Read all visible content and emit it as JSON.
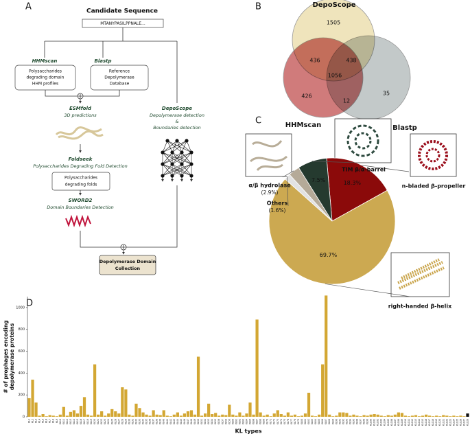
{
  "panel_labels": [
    "A",
    "B",
    "C",
    "D"
  ],
  "diagram": {
    "title": "Candidate Sequence",
    "sequence": "MTANYPASILPPNALE...",
    "hhmscan": {
      "name": "HHMscan",
      "box": [
        "Polysaccharides",
        "degrading domain",
        "HHM profiles"
      ]
    },
    "blastp": {
      "name": "Blastp",
      "box": [
        "Reference",
        "Depolymerase",
        "Database"
      ]
    },
    "esmfold": {
      "name": "ESMfold",
      "desc": "3D predictions"
    },
    "foldseek": {
      "name": "Foldseek",
      "desc": "Polysaccharides Degrading Fold Detection",
      "box": [
        "Polysaccharides",
        "degrading folds"
      ]
    },
    "sword2": {
      "name": "SWORD2",
      "desc": "Domain Boundaries Detection"
    },
    "deposcope": {
      "name": "DepoScope",
      "desc": [
        "Depolymerase detection",
        "&",
        "Boundaries detection"
      ]
    },
    "output": [
      "Depolymerase Domain",
      "Collection"
    ]
  },
  "chart_data": [
    {
      "type": "venn",
      "sets": [
        {
          "name": "DepoScope",
          "color": "#ecdfb0"
        },
        {
          "name": "HHMscan",
          "color": "#c86464"
        },
        {
          "name": "Blastp",
          "color": "#b9bfbf"
        }
      ],
      "regions": [
        {
          "sets": [
            0
          ],
          "value": 1505
        },
        {
          "sets": [
            0,
            1
          ],
          "value": 436
        },
        {
          "sets": [
            0,
            2
          ],
          "value": 438
        },
        {
          "sets": [
            0,
            1,
            2
          ],
          "value": 1056
        },
        {
          "sets": [
            1
          ],
          "value": 426
        },
        {
          "sets": [
            1,
            2
          ],
          "value": 12
        },
        {
          "sets": [
            2
          ],
          "value": 35
        }
      ]
    },
    {
      "type": "pie",
      "categories": [
        "n-bladed β-propeller",
        "right-handed β-helix",
        "Others",
        "α/β hydrolase",
        "TIM β/α-barrel"
      ],
      "values": [
        18.3,
        69.7,
        1.6,
        2.9,
        7.5
      ],
      "value_labels": [
        "18.3%",
        "69.7%",
        "(1.6%)",
        "(2.9%)",
        "7.5%"
      ],
      "colors": [
        "#8b0a0a",
        "#cca951",
        "#e2e2e2",
        "#b5aa98",
        "#253a2f"
      ]
    },
    {
      "type": "bar",
      "xlabel": "KL types",
      "ylabel": [
        "# of prophages encoding",
        "depolymerase proteins"
      ],
      "categories": [
        "KL1",
        "KL2",
        "KL3",
        "KL4",
        "KL5",
        "KL6",
        "KL7",
        "KL8",
        "KL9",
        "KL10",
        "KL11",
        "KL12",
        "KL13",
        "KL14",
        "KL15",
        "KL16",
        "KL17",
        "KL18",
        "KL19",
        "KL20",
        "KL21",
        "KL22",
        "KL23",
        "KL24",
        "KL25",
        "KL26",
        "KL27",
        "KL28",
        "KL29",
        "KL30",
        "KL31",
        "KL32",
        "KL33",
        "KL34",
        "KL35",
        "KL36",
        "KL37",
        "KL38",
        "KL39",
        "KL40",
        "KL41",
        "KL42",
        "KL43",
        "KL44",
        "KL45",
        "KL46",
        "KL47",
        "KL48",
        "KL49",
        "KL50",
        "KL51",
        "KL52",
        "KL53",
        "KL54",
        "KL55",
        "KL56",
        "KL57",
        "KL58",
        "KL59",
        "KL60",
        "KL61",
        "KL62",
        "KL63",
        "KL64",
        "KL65",
        "KL66",
        "KL67",
        "KL68",
        "KL69",
        "KL70",
        "KL71",
        "KL72",
        "KL73",
        "KL74",
        "KL75",
        "KL76",
        "KL77",
        "KL78",
        "KL79",
        "KL80",
        "KL81",
        "KL82",
        "KL83",
        "KL84",
        "KL85",
        "KL86",
        "KL87",
        "KL88",
        "KL89",
        "KL90",
        "KL91",
        "KL92",
        "KL93",
        "KL94",
        "KL95",
        "KL96",
        "KL97",
        "KL98",
        "KL99",
        "KL100",
        "KL101",
        "KL102",
        "KL103",
        "KL104",
        "KL105",
        "KL106",
        "KL107",
        "KL108",
        "KL109",
        "KL110",
        "KL111",
        "KL112",
        "KL113",
        "KL114",
        "KL115",
        "KL116",
        "KL117",
        "KL118",
        "KL119",
        "KL120",
        "KL121",
        "KL122",
        "KL123",
        "KL124",
        "KL125",
        "KL126",
        "KL127",
        "KL128"
      ],
      "values": [
        170,
        340,
        130,
        10,
        25,
        5,
        15,
        10,
        5,
        20,
        90,
        10,
        45,
        60,
        30,
        100,
        180,
        20,
        10,
        480,
        20,
        50,
        10,
        30,
        70,
        50,
        30,
        270,
        250,
        20,
        10,
        120,
        80,
        40,
        20,
        10,
        60,
        20,
        15,
        60,
        10,
        5,
        20,
        40,
        10,
        30,
        50,
        60,
        20,
        550,
        10,
        30,
        120,
        25,
        35,
        10,
        20,
        15,
        110,
        20,
        10,
        40,
        10,
        30,
        130,
        20,
        890,
        40,
        10,
        20,
        5,
        30,
        60,
        25,
        10,
        40,
        10,
        20,
        5,
        10,
        30,
        220,
        10,
        5,
        20,
        480,
        1110,
        20,
        5,
        10,
        40,
        40,
        35,
        10,
        20,
        10,
        5,
        15,
        10,
        20,
        25,
        20,
        10,
        5,
        15,
        10,
        20,
        40,
        35,
        10,
        5,
        10,
        15,
        5,
        10,
        20,
        10,
        5,
        10,
        5,
        15,
        10,
        5,
        10,
        5,
        10,
        5,
        30
      ],
      "color": "#d3a733",
      "last_color": "#111111",
      "ylim": [
        0,
        1100
      ],
      "yticks": [
        0,
        200,
        400,
        600,
        800,
        1000
      ]
    }
  ]
}
